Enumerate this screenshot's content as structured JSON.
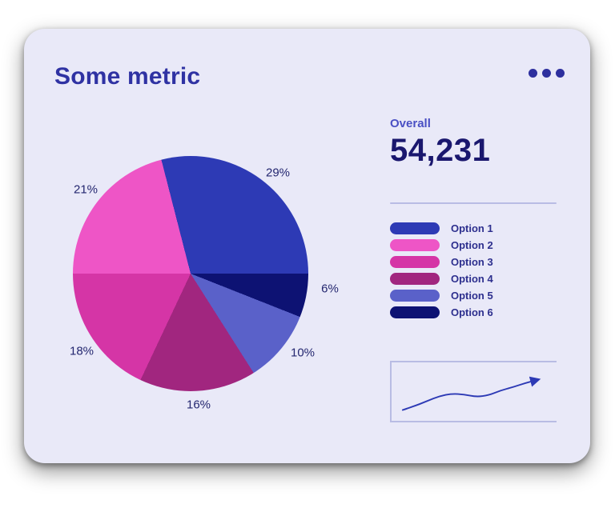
{
  "card": {
    "title": "Some metric"
  },
  "overall": {
    "label": "Overall",
    "value": "54,231"
  },
  "chart_data": [
    {
      "type": "pie",
      "title": "Some metric",
      "legend_position": "right",
      "start_angle_deg": -14.4,
      "draw_order_clockwise_from_top": [
        0,
        5,
        4,
        3,
        2,
        1
      ],
      "slices": [
        {
          "label": "Option 1",
          "value": 29,
          "percent_label": "29%",
          "color": "#2d3ab5"
        },
        {
          "label": "Option 2",
          "value": 21,
          "percent_label": "21%",
          "color": "#ee55c6"
        },
        {
          "label": "Option 3",
          "value": 18,
          "percent_label": "18%",
          "color": "#d535a6"
        },
        {
          "label": "Option 4",
          "value": 16,
          "percent_label": "16%",
          "color": "#a1267f"
        },
        {
          "label": "Option 5",
          "value": 10,
          "percent_label": "10%",
          "color": "#5a61c9"
        },
        {
          "label": "Option 6",
          "value": 6,
          "percent_label": "6%",
          "color": "#0d1273"
        }
      ]
    },
    {
      "type": "line",
      "title": "trend sparkline",
      "xlabel": "",
      "ylabel": "",
      "axis_tick_labels_visible": false,
      "line_color": "#2d3ab5",
      "axis_color": "#b9bce4",
      "ylim": [
        0,
        100
      ],
      "values": [
        6,
        16,
        28,
        40,
        46,
        44,
        38,
        42,
        54,
        62,
        72,
        80
      ],
      "note": "unlabeled rising trend with slight mid dip, arrowhead at end"
    }
  ],
  "colors": {
    "card_background": "#e9e9f8",
    "title_text": "#2f32a3",
    "overall_label": "#4a50c4",
    "overall_value": "#1a176e",
    "legend_text": "#2d2f8e",
    "divider": "#b9bce4",
    "percent_label_text": "#23266f",
    "menu_dots": "#2d2f9e"
  }
}
